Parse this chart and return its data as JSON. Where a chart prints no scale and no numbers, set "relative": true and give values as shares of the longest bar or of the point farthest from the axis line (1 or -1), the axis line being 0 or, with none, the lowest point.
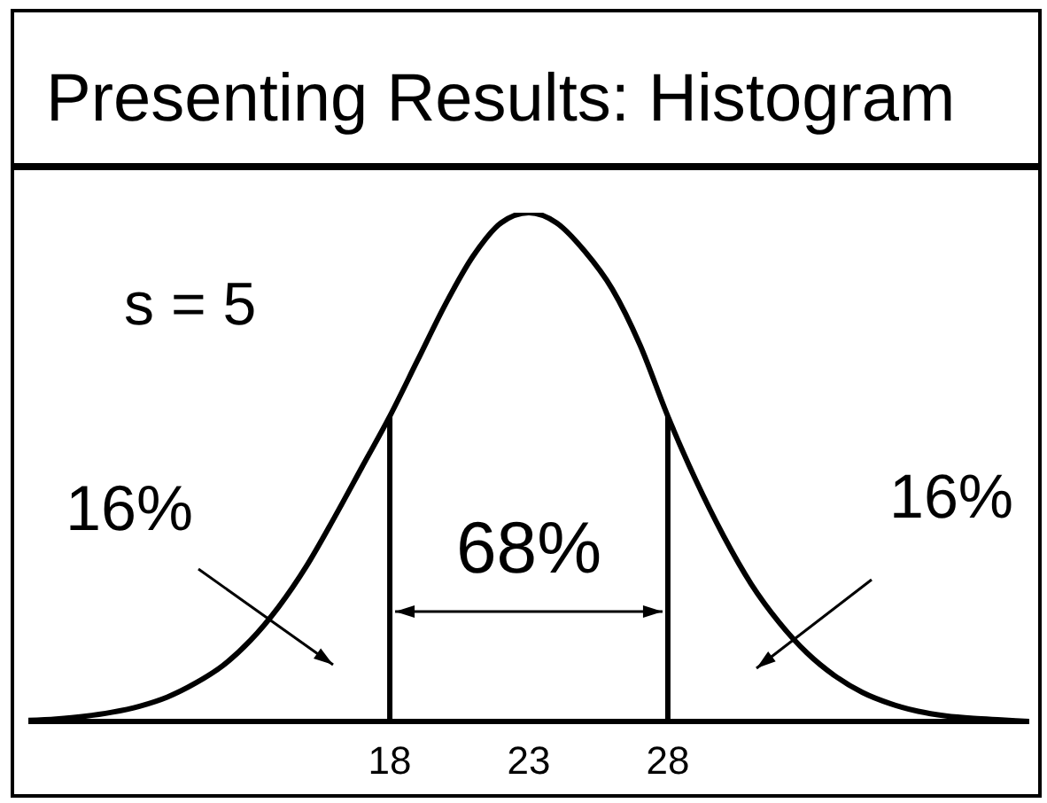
{
  "chart_data": {
    "type": "line",
    "title": "Presenting Results: Histogram",
    "relative": true,
    "marker": "none",
    "line_style": "solid",
    "x": [
      5,
      6,
      7,
      8,
      9,
      10,
      11,
      12,
      13,
      14,
      15,
      16,
      17,
      18,
      19,
      20,
      21,
      22,
      23,
      24,
      25,
      26,
      27,
      28,
      29,
      30,
      31,
      32,
      33,
      34,
      35,
      36,
      37,
      38,
      39,
      40,
      41
    ],
    "series": [
      {
        "color": "#000000",
        "values": [
          0.002,
          0.005,
          0.01,
          0.018,
          0.03,
          0.048,
          0.075,
          0.11,
          0.16,
          0.225,
          0.305,
          0.4,
          0.5,
          0.6,
          0.71,
          0.82,
          0.915,
          0.98,
          1,
          0.98,
          0.925,
          0.85,
          0.74,
          0.6,
          0.475,
          0.365,
          0.27,
          0.195,
          0.135,
          0.09,
          0.057,
          0.035,
          0.02,
          0.011,
          0.006,
          0.003,
          0
        ]
      }
    ],
    "xlim": [
      5,
      41
    ],
    "xticks": [
      18,
      23,
      28
    ],
    "ref_lines": [
      {
        "axis": "x",
        "value": 18,
        "color": "#000000"
      },
      {
        "axis": "x",
        "value": 28,
        "color": "#000000"
      }
    ],
    "annotations": [
      "s = 5",
      "16%",
      "68%",
      "16%"
    ]
  }
}
